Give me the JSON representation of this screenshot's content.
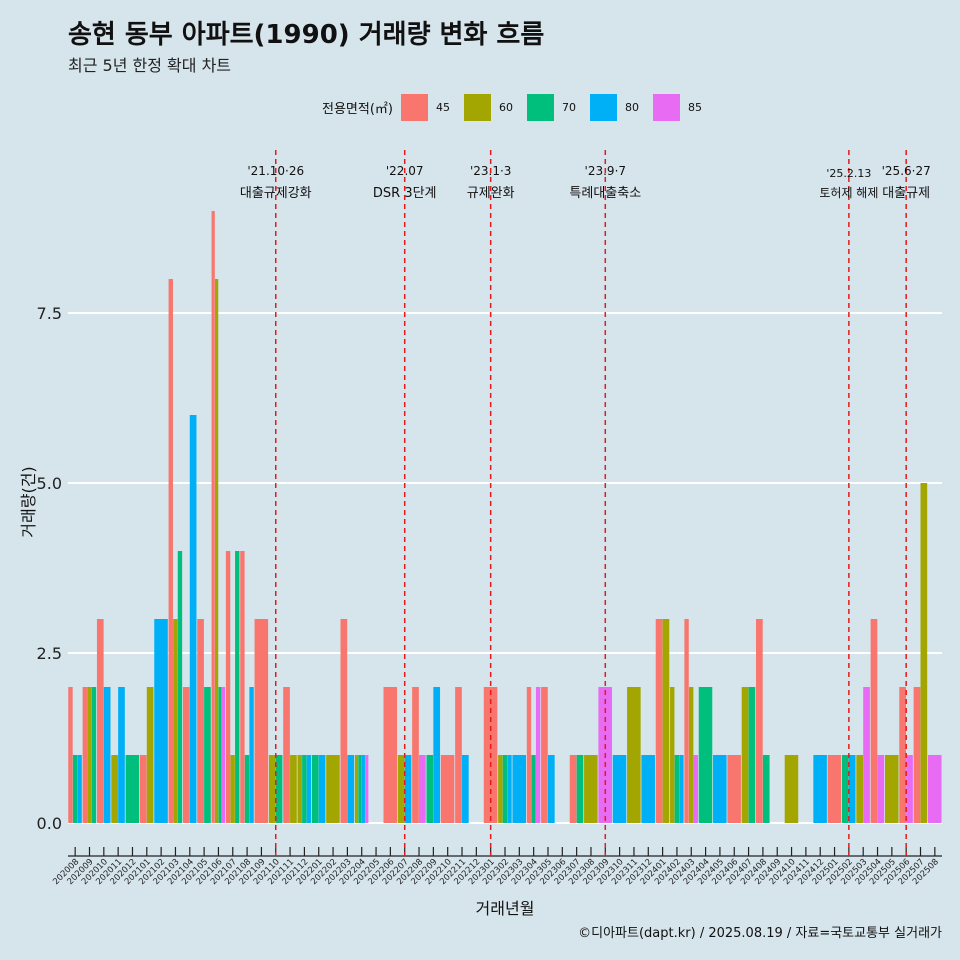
{
  "title": "송현 동부 아파트(1990) 거래량 변화 흐름",
  "subtitle": "최근 5년 한정 확대 차트",
  "legend": {
    "title": "전용면적(㎡)",
    "items": [
      {
        "label": "45",
        "color": "#f8766d"
      },
      {
        "label": "60",
        "color": "#a3a500"
      },
      {
        "label": "70",
        "color": "#00bf7d"
      },
      {
        "label": "80",
        "color": "#00b0f6"
      },
      {
        "label": "85",
        "color": "#e76bf3"
      }
    ]
  },
  "caption": "©디아파트(dapt.kr) / 2025.08.19 / 자료=국토교통부 실거래가",
  "chart_data": {
    "type": "bar",
    "xlabel": "거래년월",
    "ylabel": "거래량(건)",
    "ylim": [
      -0.4,
      9.5
    ],
    "yticks": [
      "0.0",
      "2.5",
      "5.0",
      "7.5"
    ],
    "grid": true,
    "legend_position": "top",
    "categories": [
      "202008",
      "202009",
      "202010",
      "202011",
      "202012",
      "202101",
      "202102",
      "202103",
      "202104",
      "202105",
      "202106",
      "202107",
      "202108",
      "202109",
      "202110",
      "202111",
      "202112",
      "202201",
      "202202",
      "202203",
      "202204",
      "202205",
      "202206",
      "202207",
      "202208",
      "202209",
      "202210",
      "202211",
      "202212",
      "202301",
      "202302",
      "202303",
      "202304",
      "202305",
      "202306",
      "202307",
      "202308",
      "202309",
      "202310",
      "202311",
      "202312",
      "202401",
      "202402",
      "202403",
      "202404",
      "202405",
      "202406",
      "202407",
      "202408",
      "202409",
      "202410",
      "202411",
      "202412",
      "202501",
      "202502",
      "202503",
      "202504",
      "202505",
      "202506",
      "202507",
      "202508"
    ],
    "series": [
      {
        "name": "45",
        "color": "#f8766d",
        "values": [
          2,
          2,
          3,
          0,
          0,
          1,
          0,
          8,
          2,
          3,
          9,
          4,
          4,
          3,
          0,
          2,
          0,
          0,
          0,
          3,
          0,
          0,
          2,
          0,
          2,
          0,
          1,
          2,
          0,
          2,
          0,
          0,
          2,
          2,
          0,
          1,
          0,
          0,
          0,
          0,
          0,
          3,
          0,
          3,
          0,
          0,
          1,
          0,
          3,
          0,
          0,
          0,
          0,
          1,
          0,
          0,
          3,
          0,
          2,
          2,
          0
        ]
      },
      {
        "name": "60",
        "color": "#a3a500",
        "values": [
          0,
          2,
          0,
          1,
          0,
          2,
          0,
          3,
          0,
          0,
          8,
          1,
          0,
          0,
          1,
          1,
          1,
          0,
          1,
          0,
          1,
          0,
          0,
          1,
          0,
          0,
          0,
          0,
          0,
          0,
          1,
          0,
          0,
          0,
          0,
          0,
          1,
          0,
          0,
          2,
          0,
          3,
          2,
          2,
          0,
          0,
          0,
          2,
          0,
          0,
          1,
          0,
          0,
          0,
          0,
          1,
          0,
          1,
          0,
          5,
          0
        ]
      },
      {
        "name": "70",
        "color": "#00bf7d",
        "values": [
          1,
          2,
          0,
          0,
          1,
          0,
          0,
          4,
          0,
          2,
          2,
          4,
          1,
          0,
          1,
          0,
          1,
          1,
          0,
          0,
          1,
          0,
          0,
          0,
          0,
          1,
          0,
          0,
          0,
          0,
          1,
          0,
          1,
          0,
          0,
          1,
          0,
          0,
          0,
          0,
          0,
          0,
          1,
          0,
          2,
          0,
          0,
          2,
          1,
          0,
          0,
          0,
          0,
          0,
          1,
          0,
          0,
          0,
          0,
          0,
          0
        ]
      },
      {
        "name": "80",
        "color": "#00b0f6",
        "values": [
          1,
          0,
          2,
          2,
          0,
          0,
          3,
          0,
          6,
          0,
          0,
          0,
          2,
          0,
          0,
          0,
          1,
          1,
          0,
          1,
          1,
          0,
          0,
          1,
          0,
          2,
          0,
          1,
          0,
          0,
          1,
          1,
          0,
          1,
          0,
          0,
          0,
          0,
          1,
          0,
          1,
          0,
          1,
          0,
          0,
          1,
          0,
          0,
          0,
          0,
          0,
          0,
          1,
          0,
          1,
          0,
          0,
          0,
          0,
          0,
          0
        ]
      },
      {
        "name": "85",
        "color": "#e76bf3",
        "values": [
          0,
          0,
          0,
          0,
          0,
          0,
          0,
          0,
          0,
          0,
          2,
          0,
          0,
          0,
          0,
          0,
          0,
          0,
          0,
          0,
          1,
          0,
          0,
          0,
          1,
          0,
          0,
          0,
          0,
          0,
          0,
          0,
          2,
          0,
          0,
          0,
          0,
          2,
          0,
          0,
          0,
          0,
          0,
          1,
          0,
          0,
          0,
          0,
          0,
          0,
          0,
          0,
          0,
          0,
          0,
          2,
          1,
          0,
          1,
          0,
          1
        ]
      }
    ],
    "events": [
      {
        "date": "'21.10·26",
        "label": "대출규제강화",
        "category": "202110"
      },
      {
        "date": "'22.07",
        "label": "DSR 3단계",
        "category": "202207"
      },
      {
        "date": "'23.1·3",
        "label": "규제완화",
        "category": "202301"
      },
      {
        "date": "'23.9·7",
        "label": "특례대출축소",
        "category": "202309"
      },
      {
        "date": "'25.2.13",
        "label": "토허제 해제",
        "category": "202502"
      },
      {
        "date": "'25.6·27",
        "label": "대출규제",
        "category": "202506"
      }
    ]
  }
}
